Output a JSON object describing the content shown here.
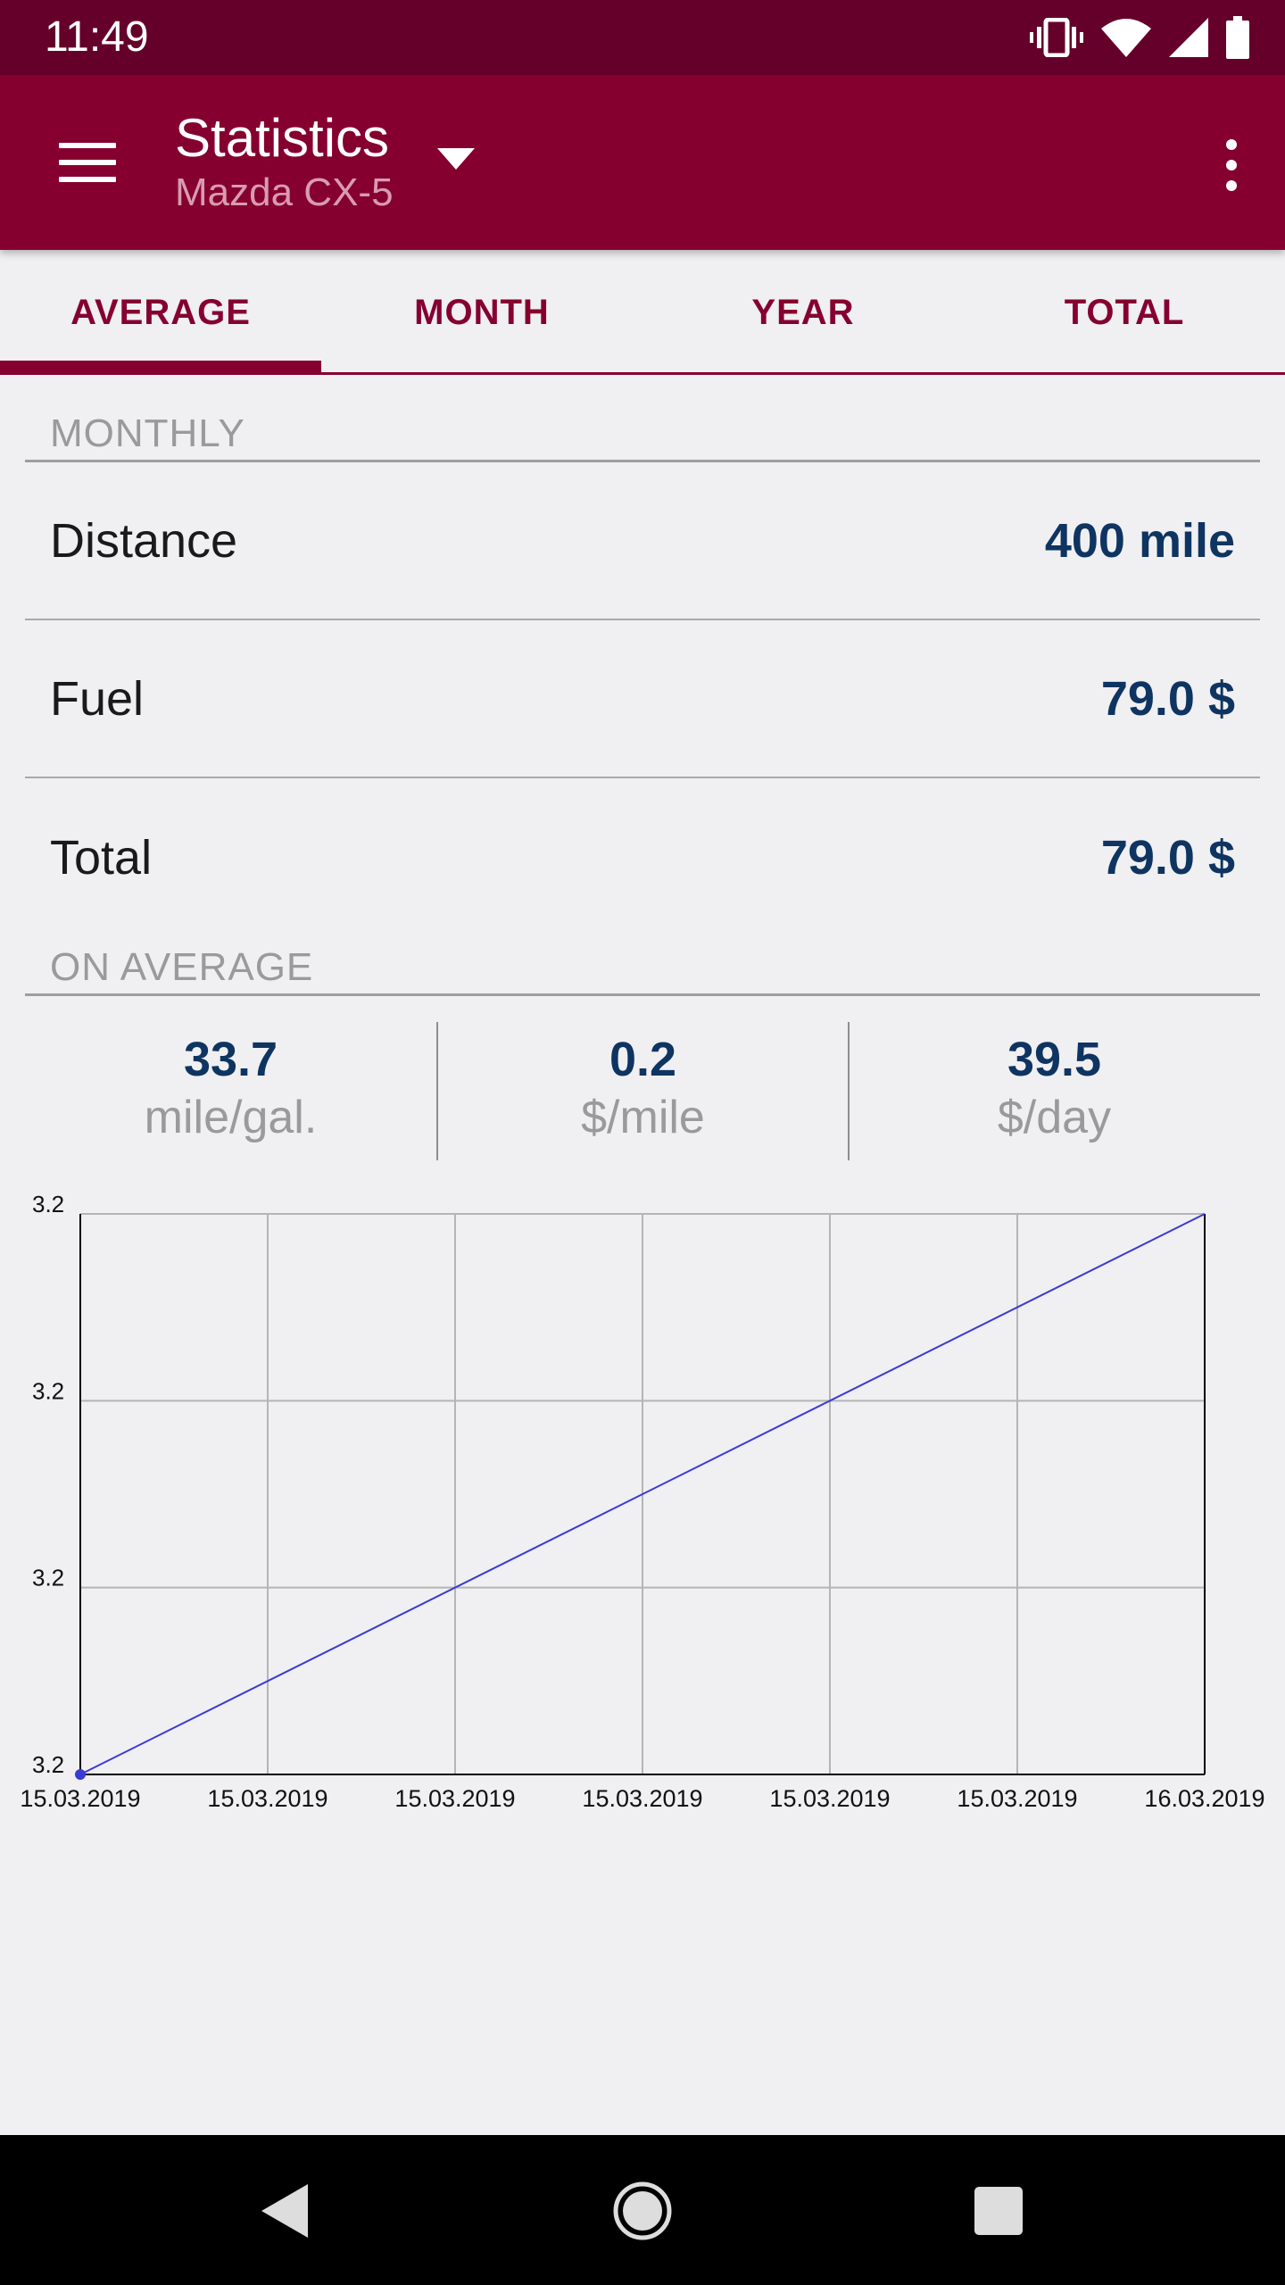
{
  "status_bar": {
    "time": "11:49",
    "icons": [
      "vibrate-icon",
      "wifi-icon",
      "signal-icon",
      "battery-icon"
    ]
  },
  "app_bar": {
    "title": "Statistics",
    "subtitle": "Mazda CX-5",
    "color": "#85002f"
  },
  "tabs": [
    {
      "label": "AVERAGE",
      "selected": true
    },
    {
      "label": "MONTH",
      "selected": false
    },
    {
      "label": "YEAR",
      "selected": false
    },
    {
      "label": "TOTAL",
      "selected": false
    }
  ],
  "monthly": {
    "header": "MONTHLY",
    "rows": [
      {
        "label": "Distance",
        "value": "400 mile"
      },
      {
        "label": "Fuel",
        "value": "79.0 $"
      },
      {
        "label": "Total",
        "value": "79.0 $"
      }
    ]
  },
  "on_average": {
    "header": "ON AVERAGE",
    "cells": [
      {
        "value": "33.7",
        "unit": "mile/gal."
      },
      {
        "value": "0.2",
        "unit": "$/mile"
      },
      {
        "value": "39.5",
        "unit": "$/day"
      }
    ]
  },
  "chart_data": {
    "type": "line",
    "title": "",
    "xlabel": "",
    "ylabel": "",
    "x_tick_labels": [
      "15.03.2019",
      "15.03.2019",
      "15.03.2019",
      "15.03.2019",
      "15.03.2019",
      "15.03.2019",
      "16.03.2019"
    ],
    "y_tick_labels": [
      "3.2",
      "3.2",
      "3.2",
      "3.2"
    ],
    "x": [
      0,
      6
    ],
    "y": [
      0,
      3
    ],
    "xlim": [
      0,
      6
    ],
    "ylim": [
      0,
      3
    ],
    "grid": true,
    "legend": "none",
    "series_color": "#3a3ad6"
  },
  "nav_bar": {
    "icons": [
      "back-icon",
      "home-icon",
      "recents-icon"
    ]
  }
}
